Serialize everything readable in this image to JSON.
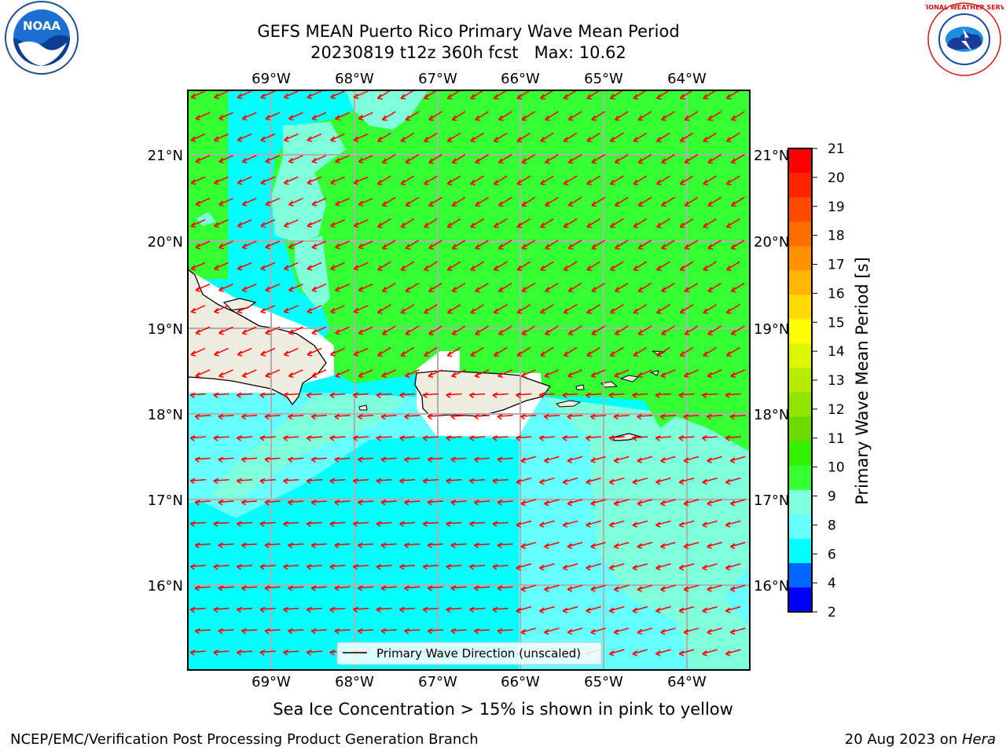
{
  "header": {
    "title_line1": "GEFS MEAN Puerto Rico Primary Wave Mean Period",
    "title_line2": "20230819 t12z 360h fcst   Max: 10.62"
  },
  "logos": {
    "left_name": "noaa-logo",
    "left_text": "NOAA",
    "right_name": "nws-logo",
    "right_text": "NATIONAL WEATHER SERVICE"
  },
  "map": {
    "lon_labels": [
      "69°W",
      "68°W",
      "67°W",
      "66°W",
      "65°W",
      "64°W"
    ],
    "lat_labels": [
      "21°N",
      "20°N",
      "19°N",
      "18°N",
      "17°N",
      "16°N"
    ],
    "legend_label": "Primary Wave Direction (unscaled)",
    "arrow_color": "#ff0000",
    "land_color": "#eeecdf"
  },
  "colorbar": {
    "label": "Primary Wave Mean Period [s]",
    "ticks": [
      "21",
      "20",
      "19",
      "18",
      "17",
      "16",
      "15",
      "14",
      "13",
      "12",
      "11",
      "10",
      "9",
      "8",
      "6",
      "4",
      "2"
    ],
    "colors": [
      "#ff0000",
      "#ff2400",
      "#ff4800",
      "#ff6d00",
      "#ff9100",
      "#ffb600",
      "#ffda00",
      "#ffff00",
      "#dbf600",
      "#b6ec00",
      "#92e300",
      "#6dda00",
      "#33f000",
      "#33ff33",
      "#80ffdd",
      "#66ffff",
      "#00ffff",
      "#0066ff",
      "#0000ff"
    ]
  },
  "notes": {
    "sea_ice": "Sea Ice Concentration > 15% is shown in pink to yellow"
  },
  "footer": {
    "left": "NCEP/EMC/Verification Post Processing Product Generation Branch",
    "date": "20 Aug 2023 on ",
    "host": "Hera"
  }
}
